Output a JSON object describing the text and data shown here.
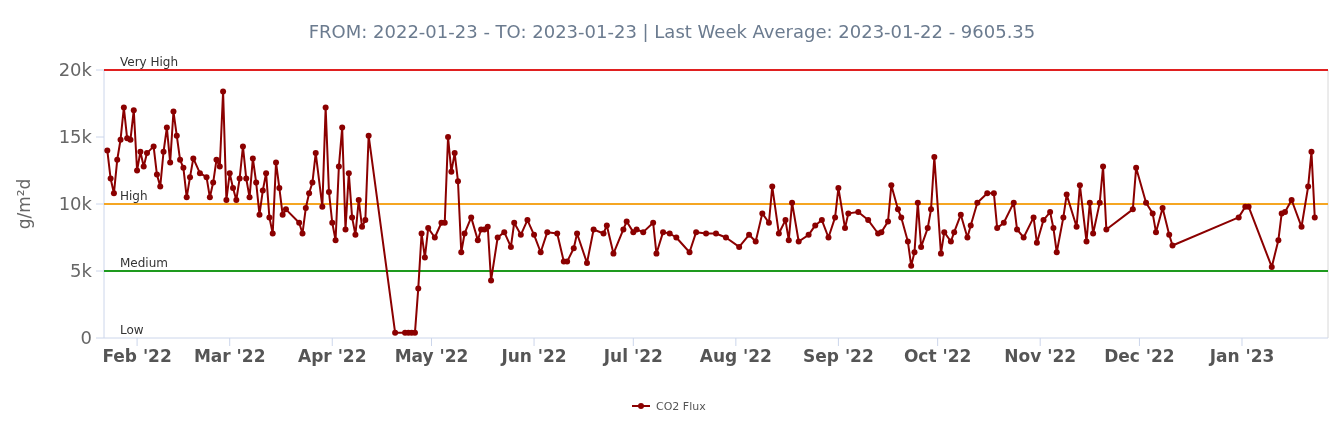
{
  "chart_data": {
    "type": "line",
    "subtitle": "FROM: 2022-01-23 - TO: 2023-01-23 | Last Week Average: 2023-01-22 - 9605.35",
    "ylabel": "g/m²d",
    "xlim": [
      "2022-01-22",
      "2023-01-27"
    ],
    "xticks": [
      {
        "value": "2022-02-01",
        "label": "Feb '22"
      },
      {
        "value": "2022-03-01",
        "label": "Mar '22"
      },
      {
        "value": "2022-04-01",
        "label": "Apr '22"
      },
      {
        "value": "2022-05-01",
        "label": "May '22"
      },
      {
        "value": "2022-06-01",
        "label": "Jun '22"
      },
      {
        "value": "2022-07-01",
        "label": "Jul '22"
      },
      {
        "value": "2022-08-01",
        "label": "Aug '22"
      },
      {
        "value": "2022-09-01",
        "label": "Sep '22"
      },
      {
        "value": "2022-10-01",
        "label": "Oct '22"
      },
      {
        "value": "2022-11-01",
        "label": "Nov '22"
      },
      {
        "value": "2022-12-01",
        "label": "Dec '22"
      },
      {
        "value": "2023-01-01",
        "label": "Jan '23"
      }
    ],
    "ylim": [
      0,
      20000
    ],
    "yticks": [
      0,
      {
        "value": 5000,
        "label": "5k"
      },
      {
        "value": 10000,
        "label": "10k"
      },
      {
        "value": 15000,
        "label": "15k"
      },
      {
        "value": 20000,
        "label": "20k"
      }
    ],
    "ref_lines": [
      {
        "axis": "y",
        "value": 20000,
        "label": "Very High",
        "color": "#e02020"
      },
      {
        "axis": "y",
        "value": 10000,
        "label": "High",
        "color": "#f5a623"
      },
      {
        "axis": "y",
        "value": 5000,
        "label": "Medium",
        "color": "#1e9a1e"
      }
    ],
    "annotations": [
      "Low"
    ],
    "legend": "bottom",
    "marker": "circle",
    "line_style": "solid",
    "x": [
      "2022-01-23",
      "2022-01-24",
      "2022-01-25",
      "2022-01-26",
      "2022-01-27",
      "2022-01-28",
      "2022-01-29",
      "2022-01-30",
      "2022-01-31",
      "2022-02-01",
      "2022-02-02",
      "2022-02-03",
      "2022-02-04",
      "2022-02-06",
      "2022-02-07",
      "2022-02-08",
      "2022-02-09",
      "2022-02-10",
      "2022-02-11",
      "2022-02-12",
      "2022-02-13",
      "2022-02-14",
      "2022-02-15",
      "2022-02-16",
      "2022-02-17",
      "2022-02-18",
      "2022-02-20",
      "2022-02-22",
      "2022-02-23",
      "2022-02-24",
      "2022-02-25",
      "2022-02-26",
      "2022-02-27",
      "2022-02-28",
      "2022-03-01",
      "2022-03-02",
      "2022-03-03",
      "2022-03-04",
      "2022-03-05",
      "2022-03-06",
      "2022-03-07",
      "2022-03-08",
      "2022-03-09",
      "2022-03-10",
      "2022-03-11",
      "2022-03-12",
      "2022-03-13",
      "2022-03-14",
      "2022-03-15",
      "2022-03-16",
      "2022-03-17",
      "2022-03-18",
      "2022-03-22",
      "2022-03-23",
      "2022-03-24",
      "2022-03-25",
      "2022-03-26",
      "2022-03-27",
      "2022-03-29",
      "2022-03-30",
      "2022-03-31",
      "2022-04-01",
      "2022-04-02",
      "2022-04-03",
      "2022-04-04",
      "2022-04-05",
      "2022-04-06",
      "2022-04-07",
      "2022-04-08",
      "2022-04-09",
      "2022-04-10",
      "2022-04-11",
      "2022-04-12",
      "2022-04-20",
      "2022-04-23",
      "2022-04-24",
      "2022-04-25",
      "2022-04-26",
      "2022-04-27",
      "2022-04-28",
      "2022-04-29",
      "2022-04-30",
      "2022-05-02",
      "2022-05-04",
      "2022-05-05",
      "2022-05-06",
      "2022-05-07",
      "2022-05-08",
      "2022-05-09",
      "2022-05-10",
      "2022-05-11",
      "2022-05-13",
      "2022-05-15",
      "2022-05-16",
      "2022-05-17",
      "2022-05-18",
      "2022-05-19",
      "2022-05-21",
      "2022-05-23",
      "2022-05-25",
      "2022-05-26",
      "2022-05-28",
      "2022-05-30",
      "2022-06-01",
      "2022-06-03",
      "2022-06-05",
      "2022-06-08",
      "2022-06-10",
      "2022-06-11",
      "2022-06-13",
      "2022-06-14",
      "2022-06-17",
      "2022-06-19",
      "2022-06-22",
      "2022-06-23",
      "2022-06-25",
      "2022-06-28",
      "2022-06-29",
      "2022-07-01",
      "2022-07-02",
      "2022-07-04",
      "2022-07-07",
      "2022-07-08",
      "2022-07-10",
      "2022-07-12",
      "2022-07-14",
      "2022-07-18",
      "2022-07-20",
      "2022-07-23",
      "2022-07-26",
      "2022-07-29",
      "2022-08-02",
      "2022-08-05",
      "2022-08-07",
      "2022-08-09",
      "2022-08-11",
      "2022-08-12",
      "2022-08-14",
      "2022-08-16",
      "2022-08-17",
      "2022-08-18",
      "2022-08-20",
      "2022-08-23",
      "2022-08-25",
      "2022-08-27",
      "2022-08-29",
      "2022-08-31",
      "2022-09-01",
      "2022-09-03",
      "2022-09-04",
      "2022-09-07",
      "2022-09-10",
      "2022-09-13",
      "2022-09-14",
      "2022-09-16",
      "2022-09-17",
      "2022-09-19",
      "2022-09-20",
      "2022-09-22",
      "2022-09-23",
      "2022-09-24",
      "2022-09-25",
      "2022-09-26",
      "2022-09-28",
      "2022-09-29",
      "2022-09-30",
      "2022-10-02",
      "2022-10-03",
      "2022-10-05",
      "2022-10-06",
      "2022-10-08",
      "2022-10-10",
      "2022-10-11",
      "2022-10-13",
      "2022-10-16",
      "2022-10-18",
      "2022-10-19",
      "2022-10-21",
      "2022-10-24",
      "2022-10-25",
      "2022-10-27",
      "2022-10-30",
      "2022-10-31",
      "2022-11-02",
      "2022-11-04",
      "2022-11-05",
      "2022-11-06",
      "2022-11-08",
      "2022-11-09",
      "2022-11-12",
      "2022-11-13",
      "2022-11-15",
      "2022-11-16",
      "2022-11-17",
      "2022-11-19",
      "2022-11-20",
      "2022-11-21",
      "2022-11-29",
      "2022-11-30",
      "2022-12-03",
      "2022-12-05",
      "2022-12-06",
      "2022-12-08",
      "2022-12-10",
      "2022-12-11",
      "2022-12-31",
      "2023-01-02",
      "2023-01-03",
      "2023-01-10",
      "2023-01-12",
      "2023-01-13",
      "2023-01-14",
      "2023-01-16",
      "2023-01-19",
      "2023-01-21",
      "2023-01-22",
      "2023-01-23"
    ],
    "series": [
      {
        "name": "CO2 Flux",
        "color": "#8b0000",
        "values": [
          14000,
          11900,
          10800,
          13300,
          14800,
          17200,
          14900,
          14800,
          17000,
          12500,
          13900,
          12800,
          13800,
          14300,
          12200,
          11300,
          13900,
          15700,
          13100,
          16900,
          15100,
          13300,
          12700,
          10500,
          12000,
          13400,
          12300,
          12000,
          10500,
          11600,
          13300,
          12800,
          18400,
          10300,
          12300,
          11200,
          10300,
          11900,
          14300,
          11900,
          10500,
          13400,
          11600,
          9200,
          11000,
          12300,
          9000,
          7800,
          13100,
          11200,
          9200,
          9600,
          8600,
          7800,
          9700,
          10800,
          11600,
          13800,
          9800,
          17200,
          10900,
          8600,
          7300,
          12800,
          15700,
          8100,
          12300,
          9000,
          7700,
          10300,
          8300,
          8800,
          15100,
          400,
          400,
          400,
          400,
          400,
          3700,
          7800,
          6000,
          8200,
          7500,
          8600,
          8600,
          15000,
          12400,
          13800,
          11700,
          6400,
          7800,
          9000,
          7300,
          8100,
          8100,
          8300,
          4300,
          7500,
          7900,
          6800,
          8600,
          7700,
          8800,
          7700,
          6400,
          7900,
          7800,
          5700,
          5700,
          6700,
          7800,
          5600,
          8100,
          7800,
          8400,
          6300,
          8100,
          8700,
          7900,
          8100,
          7900,
          8600,
          6300,
          7900,
          7800,
          7500,
          6400,
          7900,
          7800,
          7800,
          7500,
          6800,
          7700,
          7200,
          9300,
          8600,
          11300,
          7800,
          8800,
          7300,
          10100,
          7200,
          7700,
          8400,
          8800,
          7500,
          9000,
          11200,
          8200,
          9300,
          9400,
          8800,
          7800,
          7900,
          8700,
          11400,
          9600,
          9000,
          7200,
          5400,
          6400,
          10100,
          6800,
          8200,
          9600,
          13500,
          6300,
          7900,
          7200,
          7900,
          9200,
          7500,
          8400,
          10100,
          10800,
          10800,
          8200,
          8600,
          10100,
          8100,
          7500,
          9000,
          7100,
          8800,
          9400,
          8200,
          6400,
          9000,
          10700,
          8300,
          11400,
          7200,
          10100,
          7800,
          10100,
          12800,
          8100,
          9600,
          12700,
          10100,
          9300,
          7900,
          9700,
          7700,
          6900,
          9000,
          9800,
          9800,
          5300,
          7300,
          9300,
          9400,
          10300,
          8300,
          11300,
          13900,
          9000
        ]
      }
    ]
  }
}
